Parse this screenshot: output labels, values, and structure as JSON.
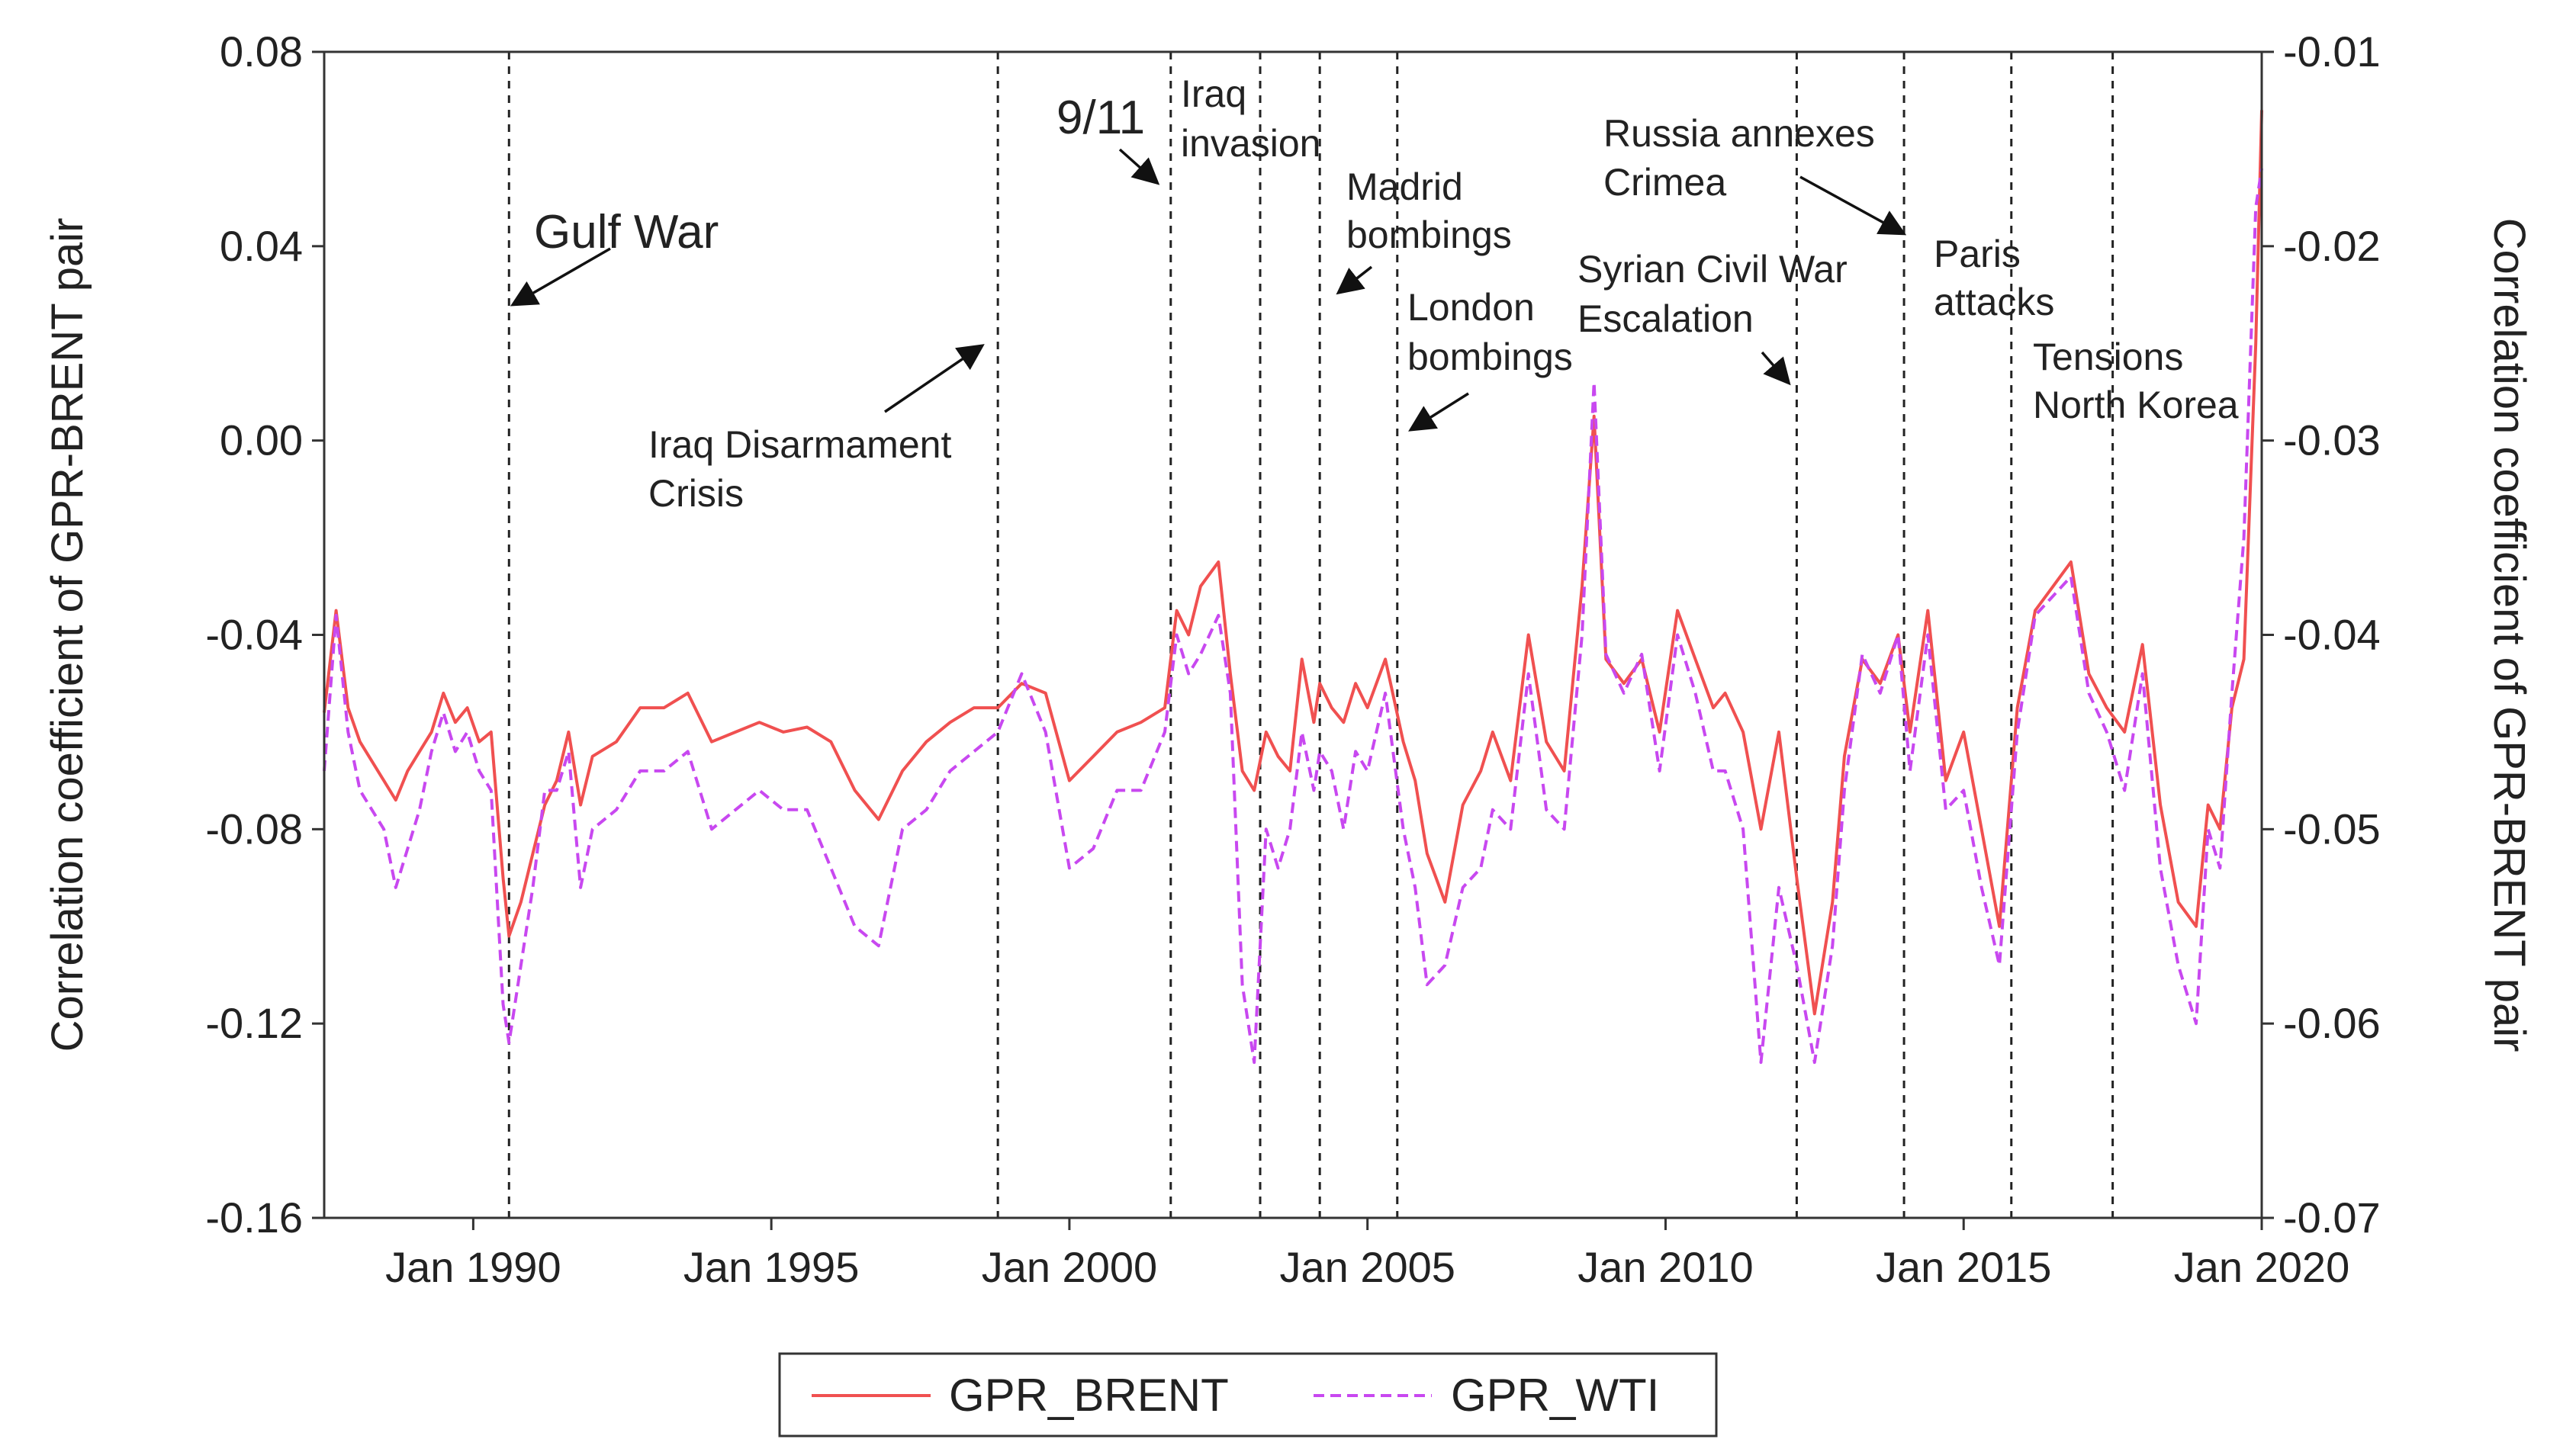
{
  "chart_data": {
    "type": "line",
    "title": "",
    "xlabel": "",
    "ylabel": "Correlation coefficient of GPR-BRENT pair",
    "ylabel_right": "Correlation coefficient of GPR-BRENT pair",
    "x_range": [
      1987.5,
      2020.0
    ],
    "ylim": [
      -0.16,
      0.08
    ],
    "ylim_right": [
      -0.07,
      -0.01
    ],
    "grid": false,
    "legend_position": "bottom-center",
    "x_ticks": [
      {
        "value": 1990,
        "label": "Jan 1990"
      },
      {
        "value": 1995,
        "label": "Jan 1995"
      },
      {
        "value": 2000,
        "label": "Jan 2000"
      },
      {
        "value": 2005,
        "label": "Jan 2005"
      },
      {
        "value": 2010,
        "label": "Jan 2010"
      },
      {
        "value": 2015,
        "label": "Jan 2015"
      },
      {
        "value": 2020,
        "label": "Jan 2020"
      }
    ],
    "y_ticks_left": [
      {
        "value": 0.08,
        "label": "0.08"
      },
      {
        "value": 0.04,
        "label": "0.04"
      },
      {
        "value": 0.0,
        "label": "0.00"
      },
      {
        "value": -0.04,
        "label": "-0.04"
      },
      {
        "value": -0.08,
        "label": "-0.08"
      },
      {
        "value": -0.12,
        "label": "-0.12"
      },
      {
        "value": -0.16,
        "label": "-0.16"
      }
    ],
    "y_ticks_right": [
      {
        "value": -0.01,
        "label": "-0.01"
      },
      {
        "value": -0.02,
        "label": "-0.02"
      },
      {
        "value": -0.03,
        "label": "-0.03"
      },
      {
        "value": -0.04,
        "label": "-0.04"
      },
      {
        "value": -0.05,
        "label": "-0.05"
      },
      {
        "value": -0.06,
        "label": "-0.06"
      },
      {
        "value": -0.07,
        "label": "-0.07"
      }
    ],
    "events": [
      {
        "year": 1990.6,
        "label": "Gulf War",
        "big": true
      },
      {
        "year": 1998.8,
        "label": "Iraq Disarmament Crisis",
        "big": false
      },
      {
        "year": 2001.7,
        "label": "9/11",
        "big": true
      },
      {
        "year": 2003.2,
        "label": "Iraq invasion",
        "big": false
      },
      {
        "year": 2004.2,
        "label": "Madrid bombings",
        "big": false
      },
      {
        "year": 2005.5,
        "label": "London bombings",
        "big": false
      },
      {
        "year": 2012.2,
        "label": "Syrian Civil War Escalation",
        "big": false
      },
      {
        "year": 2014.0,
        "label": "Russia annexes Crimea",
        "big": false
      },
      {
        "year": 2015.8,
        "label": "Paris attacks",
        "big": false
      },
      {
        "year": 2017.5,
        "label": "Tensions North Korea",
        "big": false
      }
    ],
    "series": [
      {
        "name": "GPR_BRENT",
        "axis": "left",
        "color": "#f05050",
        "dash": "solid",
        "x": [
          1987.5,
          1987.7,
          1987.9,
          1988.1,
          1988.3,
          1988.5,
          1988.7,
          1988.9,
          1989.1,
          1989.3,
          1989.5,
          1989.7,
          1989.9,
          1990.1,
          1990.3,
          1990.5,
          1990.6,
          1990.8,
          1991.0,
          1991.2,
          1991.4,
          1991.6,
          1991.8,
          1992.0,
          1992.4,
          1992.8,
          1993.2,
          1993.6,
          1994.0,
          1994.4,
          1994.8,
          1995.2,
          1995.6,
          1996.0,
          1996.4,
          1996.8,
          1997.2,
          1997.6,
          1998.0,
          1998.4,
          1998.8,
          1999.2,
          1999.6,
          2000.0,
          2000.4,
          2000.8,
          2001.2,
          2001.6,
          2001.8,
          2002.0,
          2002.2,
          2002.5,
          2002.7,
          2002.9,
          2003.1,
          2003.3,
          2003.5,
          2003.7,
          2003.9,
          2004.1,
          2004.2,
          2004.4,
          2004.6,
          2004.8,
          2005.0,
          2005.3,
          2005.6,
          2005.8,
          2006.0,
          2006.3,
          2006.6,
          2006.9,
          2007.1,
          2007.4,
          2007.7,
          2008.0,
          2008.3,
          2008.6,
          2008.8,
          2009.0,
          2009.3,
          2009.6,
          2009.9,
          2010.2,
          2010.5,
          2010.8,
          2011.0,
          2011.3,
          2011.6,
          2011.9,
          2012.2,
          2012.5,
          2012.8,
          2013.0,
          2013.3,
          2013.6,
          2013.9,
          2014.1,
          2014.4,
          2014.7,
          2015.0,
          2015.3,
          2015.6,
          2015.9,
          2016.2,
          2016.5,
          2016.8,
          2017.1,
          2017.4,
          2017.7,
          2018.0,
          2018.3,
          2018.6,
          2018.9,
          2019.1,
          2019.3,
          2019.5,
          2019.7,
          2019.9,
          2020.0
        ],
        "y": [
          -0.056,
          -0.035,
          -0.055,
          -0.062,
          -0.066,
          -0.07,
          -0.074,
          -0.068,
          -0.064,
          -0.06,
          -0.052,
          -0.058,
          -0.055,
          -0.062,
          -0.06,
          -0.09,
          -0.102,
          -0.095,
          -0.085,
          -0.075,
          -0.07,
          -0.06,
          -0.075,
          -0.065,
          -0.062,
          -0.055,
          -0.055,
          -0.052,
          -0.062,
          -0.06,
          -0.058,
          -0.06,
          -0.059,
          -0.062,
          -0.072,
          -0.078,
          -0.068,
          -0.062,
          -0.058,
          -0.055,
          -0.055,
          -0.05,
          -0.052,
          -0.07,
          -0.065,
          -0.06,
          -0.058,
          -0.055,
          -0.035,
          -0.04,
          -0.03,
          -0.025,
          -0.048,
          -0.068,
          -0.072,
          -0.06,
          -0.065,
          -0.068,
          -0.045,
          -0.058,
          -0.05,
          -0.055,
          -0.058,
          -0.05,
          -0.055,
          -0.045,
          -0.062,
          -0.07,
          -0.085,
          -0.095,
          -0.075,
          -0.068,
          -0.06,
          -0.07,
          -0.04,
          -0.062,
          -0.068,
          -0.03,
          0.005,
          -0.045,
          -0.05,
          -0.045,
          -0.06,
          -0.035,
          -0.045,
          -0.055,
          -0.052,
          -0.06,
          -0.08,
          -0.06,
          -0.09,
          -0.118,
          -0.095,
          -0.065,
          -0.045,
          -0.05,
          -0.04,
          -0.06,
          -0.035,
          -0.07,
          -0.06,
          -0.08,
          -0.1,
          -0.055,
          -0.035,
          -0.03,
          -0.025,
          -0.048,
          -0.055,
          -0.06,
          -0.042,
          -0.075,
          -0.095,
          -0.1,
          -0.075,
          -0.08,
          -0.055,
          -0.045,
          0.02,
          0.068
        ]
      },
      {
        "name": "GPR_WTI",
        "axis": "right",
        "color": "#c848f0",
        "dash": "dashed",
        "x": [
          1987.5,
          1987.7,
          1987.9,
          1988.1,
          1988.3,
          1988.5,
          1988.7,
          1988.9,
          1989.1,
          1989.3,
          1989.5,
          1989.7,
          1989.9,
          1990.1,
          1990.3,
          1990.5,
          1990.6,
          1990.8,
          1991.0,
          1991.2,
          1991.4,
          1991.6,
          1991.8,
          1992.0,
          1992.4,
          1992.8,
          1993.2,
          1993.6,
          1994.0,
          1994.4,
          1994.8,
          1995.2,
          1995.6,
          1996.0,
          1996.4,
          1996.8,
          1997.2,
          1997.6,
          1998.0,
          1998.4,
          1998.8,
          1999.2,
          1999.6,
          2000.0,
          2000.4,
          2000.8,
          2001.2,
          2001.6,
          2001.8,
          2002.0,
          2002.2,
          2002.5,
          2002.7,
          2002.9,
          2003.1,
          2003.3,
          2003.5,
          2003.7,
          2003.9,
          2004.1,
          2004.2,
          2004.4,
          2004.6,
          2004.8,
          2005.0,
          2005.3,
          2005.6,
          2005.8,
          2006.0,
          2006.3,
          2006.6,
          2006.9,
          2007.1,
          2007.4,
          2007.7,
          2008.0,
          2008.3,
          2008.6,
          2008.8,
          2009.0,
          2009.3,
          2009.6,
          2009.9,
          2010.2,
          2010.5,
          2010.8,
          2011.0,
          2011.3,
          2011.6,
          2011.9,
          2012.2,
          2012.5,
          2012.8,
          2013.0,
          2013.3,
          2013.6,
          2013.9,
          2014.1,
          2014.4,
          2014.7,
          2015.0,
          2015.3,
          2015.6,
          2015.9,
          2016.2,
          2016.5,
          2016.8,
          2017.1,
          2017.4,
          2017.7,
          2018.0,
          2018.3,
          2018.6,
          2018.9,
          2019.1,
          2019.3,
          2019.5,
          2019.7,
          2019.9,
          2020.0
        ],
        "y": [
          -0.047,
          -0.039,
          -0.045,
          -0.048,
          -0.049,
          -0.05,
          -0.053,
          -0.051,
          -0.049,
          -0.046,
          -0.044,
          -0.046,
          -0.045,
          -0.047,
          -0.048,
          -0.059,
          -0.061,
          -0.057,
          -0.053,
          -0.048,
          -0.048,
          -0.046,
          -0.053,
          -0.05,
          -0.049,
          -0.047,
          -0.047,
          -0.046,
          -0.05,
          -0.049,
          -0.048,
          -0.049,
          -0.049,
          -0.052,
          -0.055,
          -0.056,
          -0.05,
          -0.049,
          -0.047,
          -0.046,
          -0.045,
          -0.042,
          -0.045,
          -0.052,
          -0.051,
          -0.048,
          -0.048,
          -0.045,
          -0.04,
          -0.042,
          -0.041,
          -0.039,
          -0.043,
          -0.058,
          -0.062,
          -0.05,
          -0.052,
          -0.05,
          -0.045,
          -0.048,
          -0.046,
          -0.047,
          -0.05,
          -0.046,
          -0.047,
          -0.043,
          -0.05,
          -0.053,
          -0.058,
          -0.057,
          -0.053,
          -0.052,
          -0.049,
          -0.05,
          -0.042,
          -0.049,
          -0.05,
          -0.04,
          -0.027,
          -0.041,
          -0.043,
          -0.041,
          -0.047,
          -0.04,
          -0.043,
          -0.047,
          -0.047,
          -0.05,
          -0.062,
          -0.053,
          -0.057,
          -0.062,
          -0.056,
          -0.048,
          -0.041,
          -0.043,
          -0.04,
          -0.047,
          -0.04,
          -0.049,
          -0.048,
          -0.053,
          -0.057,
          -0.045,
          -0.039,
          -0.038,
          -0.037,
          -0.043,
          -0.045,
          -0.048,
          -0.042,
          -0.052,
          -0.057,
          -0.06,
          -0.05,
          -0.052,
          -0.043,
          -0.035,
          -0.018,
          -0.016
        ]
      }
    ]
  }
}
